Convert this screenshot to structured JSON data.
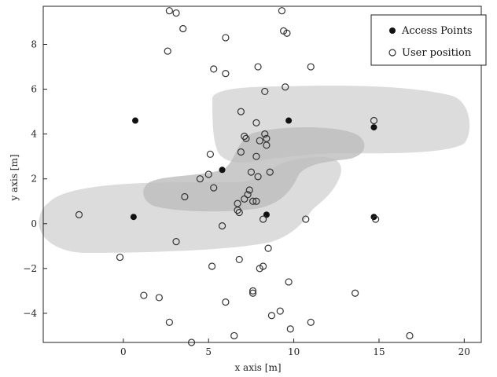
{
  "chart_data": {
    "type": "scatter",
    "title": "",
    "xlabel": "x axis [m]",
    "ylabel": "y axis [m]",
    "xlim": [
      -4.7,
      21.0
    ],
    "ylim": [
      -5.3,
      9.7
    ],
    "x_ticks": [
      0,
      5,
      10,
      15,
      20
    ],
    "y_ticks": [
      -4,
      -2,
      0,
      2,
      4,
      6,
      8
    ],
    "grid": false,
    "legend_position": "top-right",
    "legend": [
      {
        "label": "Access Points",
        "marker": "filled-circle"
      },
      {
        "label": "User position",
        "marker": "open-circle"
      }
    ],
    "series": [
      {
        "name": "Access Points",
        "marker": "filled-circle",
        "color": "#111111",
        "points": [
          [
            0.7,
            4.6
          ],
          [
            9.7,
            4.6
          ],
          [
            14.7,
            4.3
          ],
          [
            5.8,
            2.4
          ],
          [
            0.6,
            0.3
          ],
          [
            8.4,
            0.4
          ],
          [
            14.7,
            0.3
          ]
        ]
      },
      {
        "name": "User position",
        "marker": "open-circle",
        "color": "#333333",
        "points": [
          [
            2.7,
            9.5
          ],
          [
            3.1,
            9.4
          ],
          [
            9.3,
            9.5
          ],
          [
            3.5,
            8.7
          ],
          [
            6.0,
            8.3
          ],
          [
            9.4,
            8.6
          ],
          [
            9.6,
            8.5
          ],
          [
            2.6,
            7.7
          ],
          [
            5.3,
            6.9
          ],
          [
            6.0,
            6.7
          ],
          [
            7.9,
            7.0
          ],
          [
            11.0,
            7.0
          ],
          [
            8.3,
            5.9
          ],
          [
            9.5,
            6.1
          ],
          [
            6.9,
            5.0
          ],
          [
            14.7,
            4.6
          ],
          [
            7.8,
            4.5
          ],
          [
            8.3,
            4.0
          ],
          [
            8.4,
            3.8
          ],
          [
            7.1,
            3.9
          ],
          [
            7.2,
            3.8
          ],
          [
            8.0,
            3.7
          ],
          [
            8.4,
            3.5
          ],
          [
            5.1,
            3.1
          ],
          [
            6.9,
            3.2
          ],
          [
            7.8,
            3.0
          ],
          [
            4.5,
            2.0
          ],
          [
            5.0,
            2.2
          ],
          [
            5.3,
            1.6
          ],
          [
            7.5,
            2.3
          ],
          [
            7.9,
            2.1
          ],
          [
            8.6,
            2.3
          ],
          [
            3.6,
            1.2
          ],
          [
            7.4,
            1.5
          ],
          [
            7.3,
            1.3
          ],
          [
            7.1,
            1.1
          ],
          [
            7.6,
            1.0
          ],
          [
            7.8,
            1.0
          ],
          [
            6.7,
            0.9
          ],
          [
            6.7,
            0.6
          ],
          [
            6.8,
            0.5
          ],
          [
            -2.6,
            0.4
          ],
          [
            10.7,
            0.2
          ],
          [
            14.8,
            0.2
          ],
          [
            8.2,
            0.2
          ],
          [
            5.8,
            -0.1
          ],
          [
            3.1,
            -0.8
          ],
          [
            8.5,
            -1.1
          ],
          [
            -0.2,
            -1.5
          ],
          [
            6.8,
            -1.6
          ],
          [
            5.2,
            -1.9
          ],
          [
            8.2,
            -1.9
          ],
          [
            8.0,
            -2.0
          ],
          [
            9.7,
            -2.6
          ],
          [
            7.6,
            -3.0
          ],
          [
            7.6,
            -3.1
          ],
          [
            13.6,
            -3.1
          ],
          [
            1.2,
            -3.2
          ],
          [
            2.1,
            -3.3
          ],
          [
            6.0,
            -3.5
          ],
          [
            9.2,
            -3.9
          ],
          [
            8.7,
            -4.1
          ],
          [
            2.7,
            -4.4
          ],
          [
            11.0,
            -4.4
          ],
          [
            9.8,
            -4.7
          ],
          [
            6.5,
            -5.0
          ],
          [
            16.8,
            -5.0
          ],
          [
            4.0,
            -5.3
          ]
        ]
      }
    ]
  }
}
